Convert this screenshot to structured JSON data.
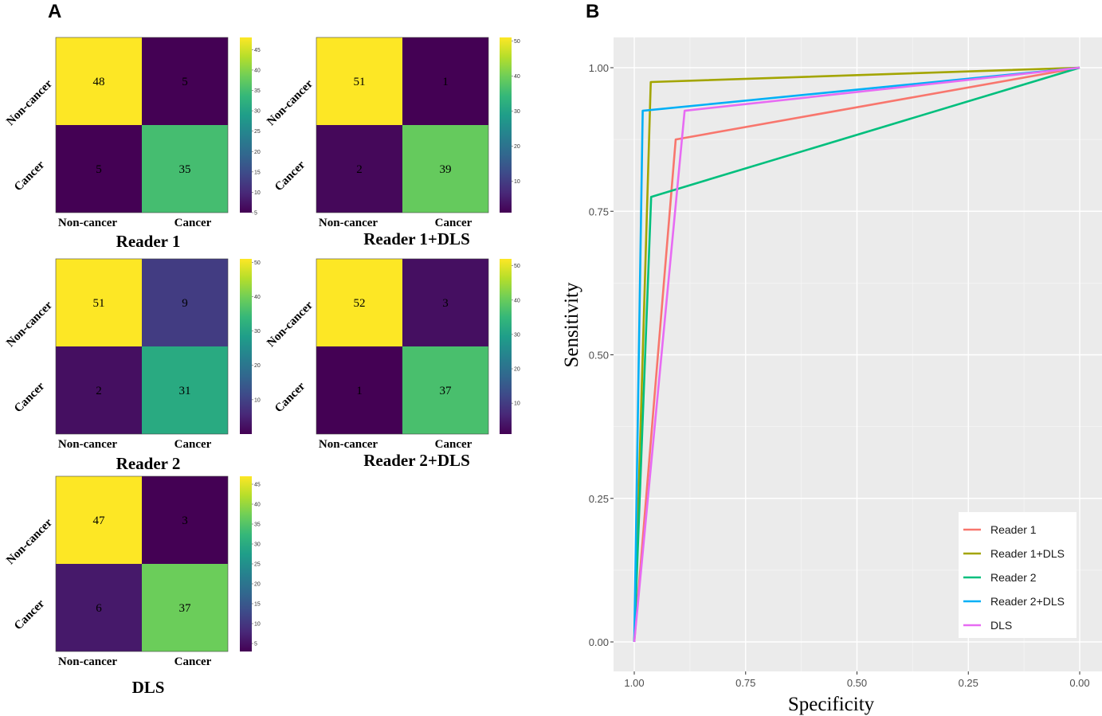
{
  "panels": {
    "a_label": "A",
    "b_label": "B"
  },
  "chart_data": [
    {
      "type": "heatmap",
      "title": "Reader 1",
      "row_labels": [
        "Non-cancer",
        "Cancer"
      ],
      "col_labels": [
        "Non-cancer",
        "Cancer"
      ],
      "values": [
        [
          48,
          5
        ],
        [
          5,
          35
        ]
      ],
      "colorbar_ticks": [
        5,
        10,
        15,
        20,
        25,
        30,
        35,
        40,
        45
      ],
      "colorbar_range": [
        5,
        48
      ]
    },
    {
      "type": "heatmap",
      "title": "Reader 1+DLS",
      "row_labels": [
        "Non-cancer",
        "Cancer"
      ],
      "col_labels": [
        "Non-cancer",
        "Cancer"
      ],
      "values": [
        [
          51,
          1
        ],
        [
          2,
          39
        ]
      ],
      "colorbar_ticks": [
        10,
        20,
        30,
        40,
        50
      ],
      "colorbar_range": [
        1,
        51
      ]
    },
    {
      "type": "heatmap",
      "title": "Reader 2",
      "row_labels": [
        "Non-cancer",
        "Cancer"
      ],
      "col_labels": [
        "Non-cancer",
        "Cancer"
      ],
      "values": [
        [
          51,
          9
        ],
        [
          2,
          31
        ]
      ],
      "colorbar_ticks": [
        10,
        20,
        30,
        40,
        50
      ],
      "colorbar_range": [
        0,
        51
      ]
    },
    {
      "type": "heatmap",
      "title": "Reader 2+DLS",
      "row_labels": [
        "Non-cancer",
        "Cancer"
      ],
      "col_labels": [
        "Non-cancer",
        "Cancer"
      ],
      "values": [
        [
          52,
          3
        ],
        [
          1,
          37
        ]
      ],
      "colorbar_ticks": [
        10,
        20,
        30,
        40,
        50
      ],
      "colorbar_range": [
        1,
        52
      ]
    },
    {
      "type": "heatmap",
      "title": "DLS",
      "row_labels": [
        "Non-cancer",
        "Cancer"
      ],
      "col_labels": [
        "Non-cancer",
        "Cancer"
      ],
      "values": [
        [
          47,
          3
        ],
        [
          6,
          37
        ]
      ],
      "colorbar_ticks": [
        5,
        10,
        15,
        20,
        25,
        30,
        35,
        40,
        45
      ],
      "colorbar_range": [
        3,
        47
      ]
    },
    {
      "type": "line",
      "title": "",
      "xlabel": "Specificity",
      "ylabel": "Sensitivity",
      "xlim": [
        1.0,
        0.0
      ],
      "ylim": [
        0.0,
        1.0
      ],
      "x_reversed": true,
      "xticks": [
        "1.00",
        "0.75",
        "0.50",
        "0.25",
        "0.00"
      ],
      "yticks": [
        "0.00",
        "0.25",
        "0.50",
        "0.75",
        "1.00"
      ],
      "legend_position": "bottom-right",
      "series": [
        {
          "name": "Reader 1",
          "color": "#F8766D",
          "specificity": [
            1.0,
            0.907,
            0.0
          ],
          "sensitivity": [
            0.0,
            0.875,
            1.0
          ]
        },
        {
          "name": "Reader 1+DLS",
          "color": "#A3A500",
          "specificity": [
            1.0,
            0.963,
            0.0
          ],
          "sensitivity": [
            0.0,
            0.975,
            1.0
          ]
        },
        {
          "name": "Reader 2",
          "color": "#00BF7D",
          "specificity": [
            1.0,
            0.962,
            0.0
          ],
          "sensitivity": [
            0.0,
            0.775,
            1.0
          ]
        },
        {
          "name": "Reader 2+DLS",
          "color": "#00B0F6",
          "specificity": [
            1.0,
            0.981,
            0.0
          ],
          "sensitivity": [
            0.0,
            0.925,
            1.0
          ]
        },
        {
          "name": "DLS",
          "color": "#E76BF3",
          "specificity": [
            1.0,
            0.887,
            0.0
          ],
          "sensitivity": [
            0.0,
            0.925,
            1.0
          ]
        }
      ]
    }
  ]
}
